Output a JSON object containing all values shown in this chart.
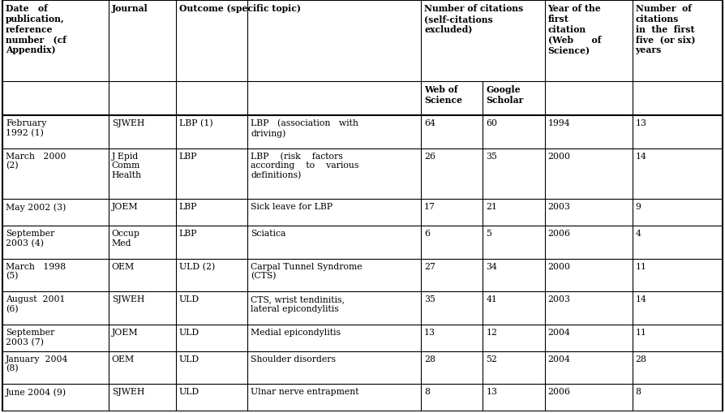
{
  "headers_row1": [
    "Date   of\npublication,\nreference\nnumber   (cf\nAppendix)",
    "Journal",
    "Outcome (specific topic)",
    "Number of citations\n(self-citations\nexcluded)",
    "",
    "Year of the\nfirst\ncitation\n(Web      of\nScience)",
    "Number  of\ncitations\nin  the  first\nfive  (or six)\nyears"
  ],
  "headers_row2": [
    "",
    "",
    "",
    "Web of\nScience",
    "Google\nScholar",
    "",
    ""
  ],
  "rows": [
    [
      "February\n1992 (1)",
      "SJWEH",
      "LBP (1)",
      "LBP   (association   with\ndriving)",
      "64",
      "60",
      "1994",
      "13"
    ],
    [
      "March   2000\n(2)",
      "J Epid\nComm\nHealth",
      "LBP",
      "LBP    (risk    factors\naccording    to    various\ndefinitions)",
      "26",
      "35",
      "2000",
      "14"
    ],
    [
      "May 2002 (3)",
      "JOEM",
      "LBP",
      "Sick leave for LBP",
      "17",
      "21",
      "2003",
      "9"
    ],
    [
      "September\n2003 (4)",
      "Occup\nMed",
      "LBP",
      "Sciatica",
      "6",
      "5",
      "2006",
      "4"
    ],
    [
      "March   1998\n(5)",
      "OEM",
      "ULD (2)",
      "Carpal Tunnel Syndrome\n(CTS)",
      "27",
      "34",
      "2000",
      "11"
    ],
    [
      "August  2001\n(6)",
      "SJWEH",
      "ULD",
      "CTS, wrist tendinitis,\nlateral epicondylitis",
      "35",
      "41",
      "2003",
      "14"
    ],
    [
      "September\n2003 (7)",
      "JOEM",
      "ULD",
      "Medial epicondylitis",
      "13",
      "12",
      "2004",
      "11"
    ],
    [
      "January  2004\n(8)",
      "OEM",
      "ULD",
      "Shoulder disorders",
      "28",
      "52",
      "2004",
      "28"
    ],
    [
      "June 2004 (9)",
      "SJWEH",
      "ULD",
      "Ulnar nerve entrapment",
      "8",
      "13",
      "2006",
      "8"
    ]
  ],
  "background_color": "#ffffff",
  "line_color": "#000000",
  "text_color": "#000000",
  "font_size": 7.8,
  "header_font_size": 7.8
}
